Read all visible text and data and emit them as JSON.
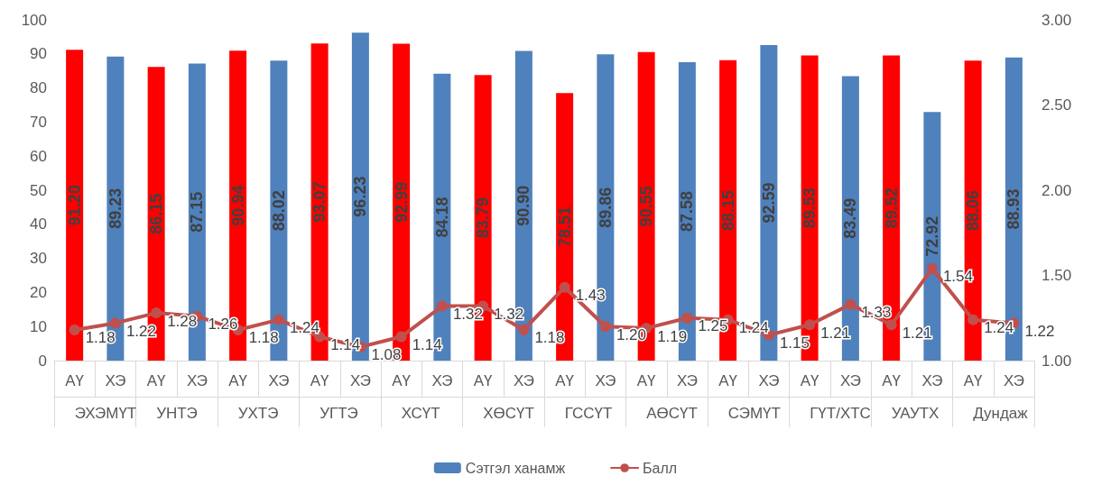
{
  "chart_data": {
    "type": "bar",
    "categories": [
      "АҮ",
      "ХЭ",
      "АҮ",
      "ХЭ",
      "АҮ",
      "ХЭ",
      "АҮ",
      "ХЭ",
      "АҮ",
      "ХЭ",
      "АҮ",
      "ХЭ",
      "АҮ",
      "ХЭ",
      "АҮ",
      "ХЭ",
      "АҮ",
      "ХЭ",
      "АҮ",
      "ХЭ",
      "АҮ",
      "ХЭ",
      "АҮ",
      "ХЭ"
    ],
    "annotations": [
      "ЭХЭМҮТ",
      "УНТЭ",
      "УХТЭ",
      "УГТЭ",
      "ХСҮТ",
      "ХӨСҮТ",
      "ГССҮТ",
      "АӨСҮТ",
      "СЭМҮТ",
      "ГҮТ/ХТС",
      "УАУТХ",
      "Дундаж"
    ],
    "series": [
      {
        "name": "Сэтгэл ханамж",
        "color": "#4f81bd",
        "colors": [
          "#ff0000",
          "#4f81bd",
          "#ff0000",
          "#4f81bd",
          "#ff0000",
          "#4f81bd",
          "#ff0000",
          "#4f81bd",
          "#ff0000",
          "#4f81bd",
          "#ff0000",
          "#4f81bd",
          "#ff0000",
          "#4f81bd",
          "#ff0000",
          "#4f81bd",
          "#ff0000",
          "#4f81bd",
          "#ff0000",
          "#4f81bd",
          "#ff0000",
          "#4f81bd",
          "#ff0000",
          "#4f81bd"
        ],
        "values": [
          91.2,
          89.23,
          86.15,
          87.15,
          90.94,
          88.02,
          93.07,
          96.23,
          92.99,
          84.18,
          83.79,
          90.9,
          78.51,
          89.86,
          90.55,
          87.58,
          88.15,
          92.59,
          89.53,
          83.49,
          89.52,
          72.92,
          88.06,
          88.93
        ],
        "value_labels": [
          "91.20",
          "89.23",
          "86.15",
          "87.15",
          "90.94",
          "88.02",
          "93.07",
          "96.23",
          "92.99",
          "84.18",
          "83.79",
          "90.90",
          "78.51",
          "89.86",
          "90.55",
          "87.58",
          "88.15",
          "92.59",
          "89.53",
          "83.49",
          "89.52",
          "72.92",
          "88.06",
          "88.93"
        ]
      },
      {
        "name": "Балл",
        "type": "line",
        "axis": "y2",
        "color": "#c0504d",
        "values": [
          1.18,
          1.22,
          1.28,
          1.26,
          1.18,
          1.24,
          1.14,
          1.08,
          1.14,
          1.32,
          1.32,
          1.18,
          1.43,
          1.2,
          1.19,
          1.25,
          1.24,
          1.15,
          1.21,
          1.33,
          1.21,
          1.54,
          1.24,
          1.22
        ],
        "value_labels": [
          "1.18",
          "1.22",
          "1.28",
          "1.26",
          "1.18",
          "1.24",
          "1.14",
          "1.08",
          "1.14",
          "1.32",
          "1.32",
          "1.18",
          "1.43",
          "1.20",
          "1.19",
          "1.25",
          "1.24",
          "1.15",
          "1.21",
          "1.33",
          "1.21",
          "1.54",
          "1.24",
          "1.22"
        ]
      }
    ],
    "ylim": [
      0,
      100
    ],
    "yticks": [
      0,
      10,
      20,
      30,
      40,
      50,
      60,
      70,
      80,
      90,
      100
    ],
    "y2lim": [
      1,
      3
    ],
    "y2ticks": [
      {
        "value": 1,
        "label": "1.00"
      },
      {
        "value": 1.5,
        "label": "1.50"
      },
      {
        "value": 2,
        "label": "2.00"
      },
      {
        "value": 2.5,
        "label": "2.50"
      },
      {
        "value": 3,
        "label": "3.00"
      }
    ],
    "marker": "circle",
    "legend": "bottom",
    "grid": false
  }
}
